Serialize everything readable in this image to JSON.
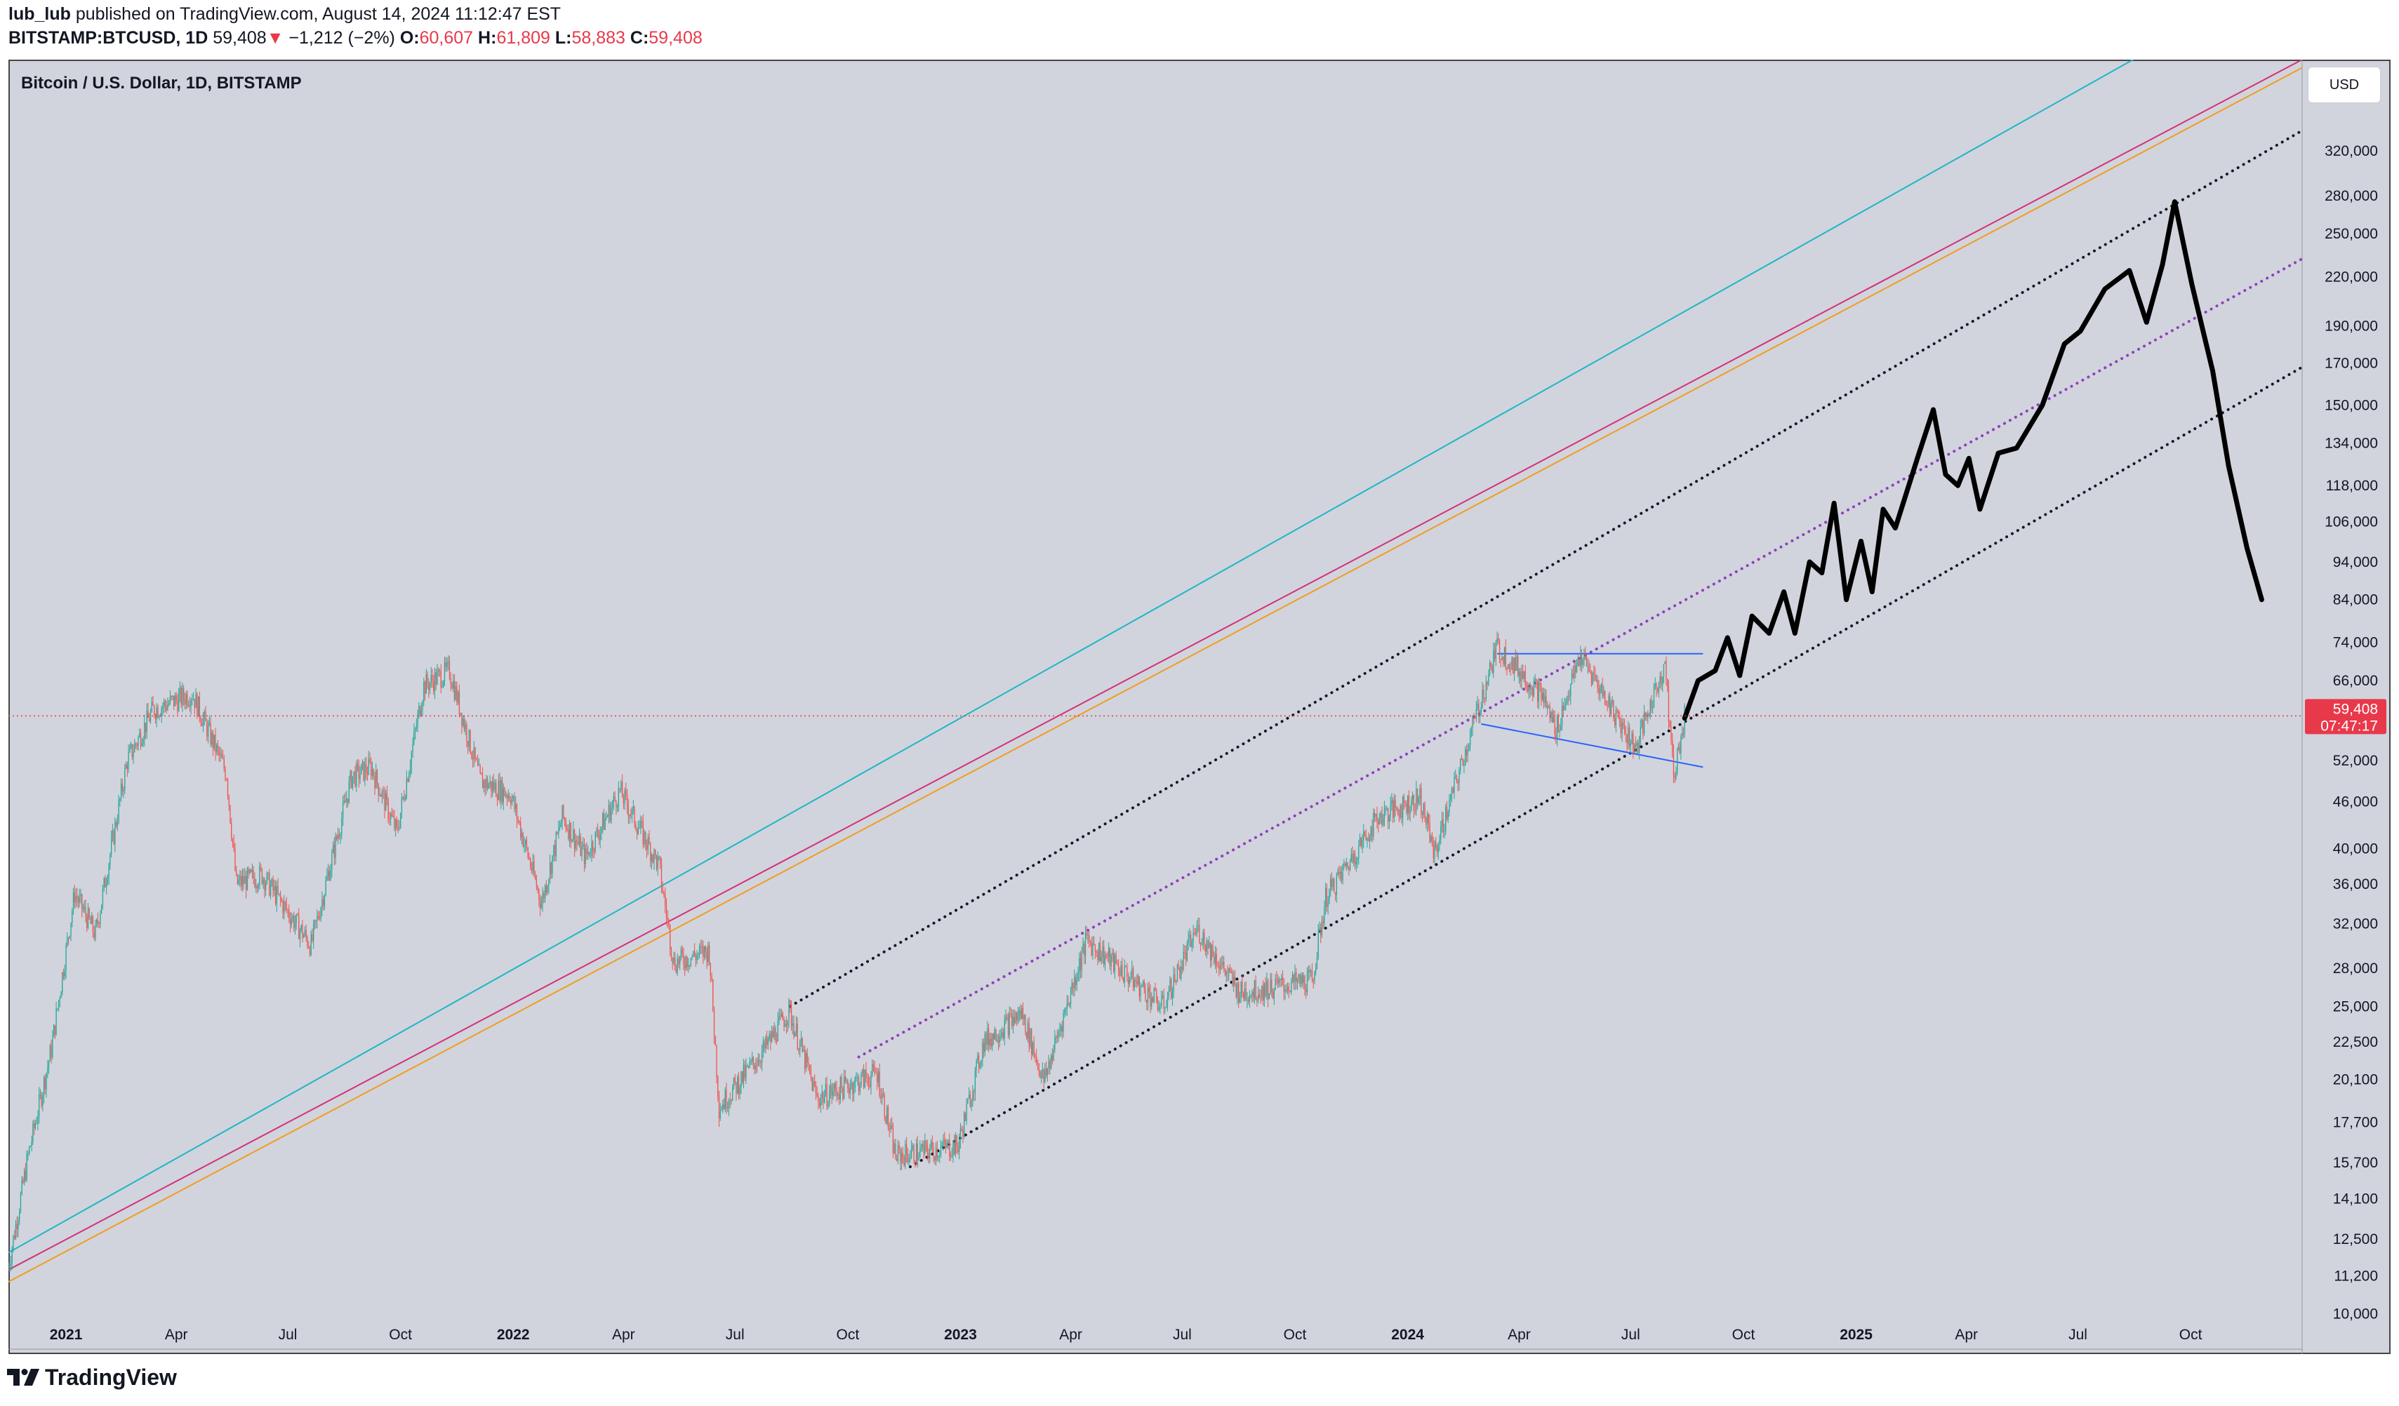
{
  "header": {
    "author": "lub_lub",
    "published_text": "published on TradingView.com, August 14, 2024 11:12:47 EST",
    "symbol": "BITSTAMP:BTCUSD, 1D",
    "last": "59,408",
    "arrow": "▼",
    "change": "−1,212 (−2%)",
    "open_label": "O:",
    "open": "60,607",
    "high_label": "H:",
    "high": "61,809",
    "low_label": "L:",
    "low": "58,883",
    "close_label": "C:",
    "close": "59,408"
  },
  "legend": {
    "title": "Bitcoin / U.S. Dollar, 1D, BITSTAMP"
  },
  "currency_button": "USD",
  "logo": {
    "text": "TradingView"
  },
  "colors": {
    "background": "#d1d4dc",
    "up": "#26a69a",
    "down": "#ef5350",
    "price_line": "#e8394b",
    "cyan_line": "#1fb5c9",
    "magenta_line": "#d5307a",
    "orange_line": "#f29b23",
    "triangle": "#2962ff",
    "channel": "#131722",
    "mid_channel": "#8e3fbf",
    "projection": "#000000"
  },
  "chart_data": {
    "type": "candlestick",
    "title": "Bitcoin / U.S. Dollar, 1D, BITSTAMP",
    "scale": "logarithmic",
    "ylim": [
      9000,
      420000
    ],
    "xlim": [
      "2020-11-15",
      "2025-12-31"
    ],
    "y_ticks": [
      "320,000",
      "280,000",
      "250,000",
      "220,000",
      "190,000",
      "170,000",
      "150,000",
      "134,000",
      "118,000",
      "106,000",
      "94,000",
      "84,000",
      "74,000",
      "66,000",
      "52,000",
      "46,000",
      "40,000",
      "36,000",
      "32,000",
      "28,000",
      "25,000",
      "22,500",
      "20,100",
      "17,700",
      "15,700",
      "14,100",
      "12,500",
      "11,200",
      "10,000"
    ],
    "x_ticks": [
      {
        "label": "2021",
        "date": "2021-01-01",
        "bold": true
      },
      {
        "label": "Apr",
        "date": "2021-04-01"
      },
      {
        "label": "Jul",
        "date": "2021-07-01"
      },
      {
        "label": "Oct",
        "date": "2021-10-01"
      },
      {
        "label": "2022",
        "date": "2022-01-01",
        "bold": true
      },
      {
        "label": "Apr",
        "date": "2022-04-01"
      },
      {
        "label": "Jul",
        "date": "2022-07-01"
      },
      {
        "label": "Oct",
        "date": "2022-10-01"
      },
      {
        "label": "2023",
        "date": "2023-01-01",
        "bold": true
      },
      {
        "label": "Apr",
        "date": "2023-04-01"
      },
      {
        "label": "Jul",
        "date": "2023-07-01"
      },
      {
        "label": "Oct",
        "date": "2023-10-01"
      },
      {
        "label": "2024",
        "date": "2024-01-01",
        "bold": true
      },
      {
        "label": "Apr",
        "date": "2024-04-01"
      },
      {
        "label": "Jul",
        "date": "2024-07-01"
      },
      {
        "label": "Oct",
        "date": "2024-10-01"
      },
      {
        "label": "2025",
        "date": "2025-01-01",
        "bold": true
      },
      {
        "label": "Apr",
        "date": "2025-04-01"
      },
      {
        "label": "Jul",
        "date": "2025-07-01"
      },
      {
        "label": "Oct",
        "date": "2025-10-01"
      }
    ],
    "price_path": [
      [
        "2020-11-15",
        11500
      ],
      [
        "2020-12-01",
        16000
      ],
      [
        "2020-12-20",
        22000
      ],
      [
        "2021-01-08",
        35000
      ],
      [
        "2021-01-25",
        31000
      ],
      [
        "2021-02-20",
        52000
      ],
      [
        "2021-03-13",
        60500
      ],
      [
        "2021-04-14",
        63500
      ],
      [
        "2021-05-12",
        50000
      ],
      [
        "2021-05-20",
        36000
      ],
      [
        "2021-06-10",
        37000
      ],
      [
        "2021-07-20",
        30000
      ],
      [
        "2021-08-22",
        49500
      ],
      [
        "2021-09-07",
        51000
      ],
      [
        "2021-09-28",
        42000
      ],
      [
        "2021-10-20",
        65000
      ],
      [
        "2021-11-10",
        68000
      ],
      [
        "2021-12-05",
        49000
      ],
      [
        "2021-12-30",
        47000
      ],
      [
        "2022-01-24",
        34000
      ],
      [
        "2022-02-10",
        44000
      ],
      [
        "2022-03-01",
        39000
      ],
      [
        "2022-03-29",
        47500
      ],
      [
        "2022-04-30",
        38000
      ],
      [
        "2022-05-12",
        28500
      ],
      [
        "2022-06-10",
        29500
      ],
      [
        "2022-06-18",
        18500
      ],
      [
        "2022-07-25",
        22000
      ],
      [
        "2022-08-14",
        24700
      ],
      [
        "2022-09-06",
        19000
      ],
      [
        "2022-10-25",
        20500
      ],
      [
        "2022-11-09",
        16000
      ],
      [
        "2022-12-30",
        16500
      ],
      [
        "2023-01-20",
        22500
      ],
      [
        "2023-02-20",
        24500
      ],
      [
        "2023-03-10",
        20000
      ],
      [
        "2023-04-14",
        30500
      ],
      [
        "2023-06-15",
        25000
      ],
      [
        "2023-07-13",
        31500
      ],
      [
        "2023-08-17",
        26000
      ],
      [
        "2023-10-15",
        27000
      ],
      [
        "2023-10-26",
        34500
      ],
      [
        "2023-12-08",
        44000
      ],
      [
        "2024-01-11",
        46500
      ],
      [
        "2024-01-23",
        39500
      ],
      [
        "2024-03-14",
        73000
      ],
      [
        "2024-04-20",
        63000
      ],
      [
        "2024-05-01",
        57000
      ],
      [
        "2024-05-21",
        71000
      ],
      [
        "2024-07-05",
        54000
      ],
      [
        "2024-07-29",
        69500
      ],
      [
        "2024-08-05",
        49500
      ],
      [
        "2024-08-14",
        59408
      ]
    ],
    "projection_path": [
      [
        "2024-08-14",
        59000
      ],
      [
        "2024-08-25",
        66000
      ],
      [
        "2024-09-08",
        68000
      ],
      [
        "2024-09-18",
        75000
      ],
      [
        "2024-09-28",
        67000
      ],
      [
        "2024-10-08",
        80000
      ],
      [
        "2024-10-22",
        76000
      ],
      [
        "2024-11-03",
        86000
      ],
      [
        "2024-11-12",
        76000
      ],
      [
        "2024-11-24",
        94000
      ],
      [
        "2024-12-04",
        91000
      ],
      [
        "2024-12-14",
        112000
      ],
      [
        "2024-12-24",
        84000
      ],
      [
        "2025-01-05",
        100000
      ],
      [
        "2025-01-14",
        86000
      ],
      [
        "2025-01-23",
        110000
      ],
      [
        "2025-02-02",
        104000
      ],
      [
        "2025-02-20",
        128000
      ],
      [
        "2025-03-05",
        148000
      ],
      [
        "2025-03-15",
        122000
      ],
      [
        "2025-03-25",
        118000
      ],
      [
        "2025-04-03",
        128000
      ],
      [
        "2025-04-12",
        110000
      ],
      [
        "2025-04-27",
        130000
      ],
      [
        "2025-05-12",
        132000
      ],
      [
        "2025-06-02",
        150000
      ],
      [
        "2025-06-20",
        180000
      ],
      [
        "2025-07-03",
        187000
      ],
      [
        "2025-07-23",
        212000
      ],
      [
        "2025-08-12",
        224000
      ],
      [
        "2025-08-26",
        192000
      ],
      [
        "2025-09-08",
        228000
      ],
      [
        "2025-09-18",
        275000
      ],
      [
        "2025-10-02",
        215000
      ],
      [
        "2025-10-19",
        166000
      ],
      [
        "2025-11-01",
        125000
      ],
      [
        "2025-11-16",
        98000
      ],
      [
        "2025-11-28",
        84000
      ]
    ],
    "trendlines": [
      {
        "name": "cyan-trendline",
        "color_key": "cyan_line",
        "style": "solid",
        "from": [
          "2020-11-15",
          12000
        ],
        "to": [
          "2025-08-15",
          420000
        ]
      },
      {
        "name": "magenta-trendline",
        "color_key": "magenta_line",
        "style": "solid",
        "from": [
          "2020-11-15",
          11400
        ],
        "to": [
          "2025-12-31",
          420000
        ]
      },
      {
        "name": "orange-trendline",
        "color_key": "orange_line",
        "style": "solid",
        "from": [
          "2020-11-15",
          11000
        ],
        "to": [
          "2025-12-31",
          410000
        ]
      },
      {
        "name": "channel-upper-line",
        "color_key": "channel",
        "style": "dotted",
        "from": [
          "2022-08-15",
          25000
        ],
        "to": [
          "2025-12-31",
          340000
        ]
      },
      {
        "name": "channel-mid-line",
        "color_key": "mid_channel",
        "style": "dotted",
        "from": [
          "2022-10-10",
          21500
        ],
        "to": [
          "2025-12-31",
          232000
        ]
      },
      {
        "name": "channel-lower-line",
        "color_key": "channel",
        "style": "dotted",
        "from": [
          "2022-11-21",
          15500
        ],
        "to": [
          "2025-12-31",
          168000
        ]
      },
      {
        "name": "triangle-top-line",
        "color_key": "triangle",
        "style": "solid",
        "from": [
          "2024-03-14",
          71500
        ],
        "to": [
          "2024-08-29",
          71500
        ]
      },
      {
        "name": "triangle-bottom-line",
        "color_key": "triangle",
        "style": "solid",
        "from": [
          "2024-03-01",
          58000
        ],
        "to": [
          "2024-08-29",
          51000
        ]
      }
    ],
    "current_price": {
      "value": 59408,
      "label": "59,408",
      "countdown": "07:47:17"
    }
  }
}
